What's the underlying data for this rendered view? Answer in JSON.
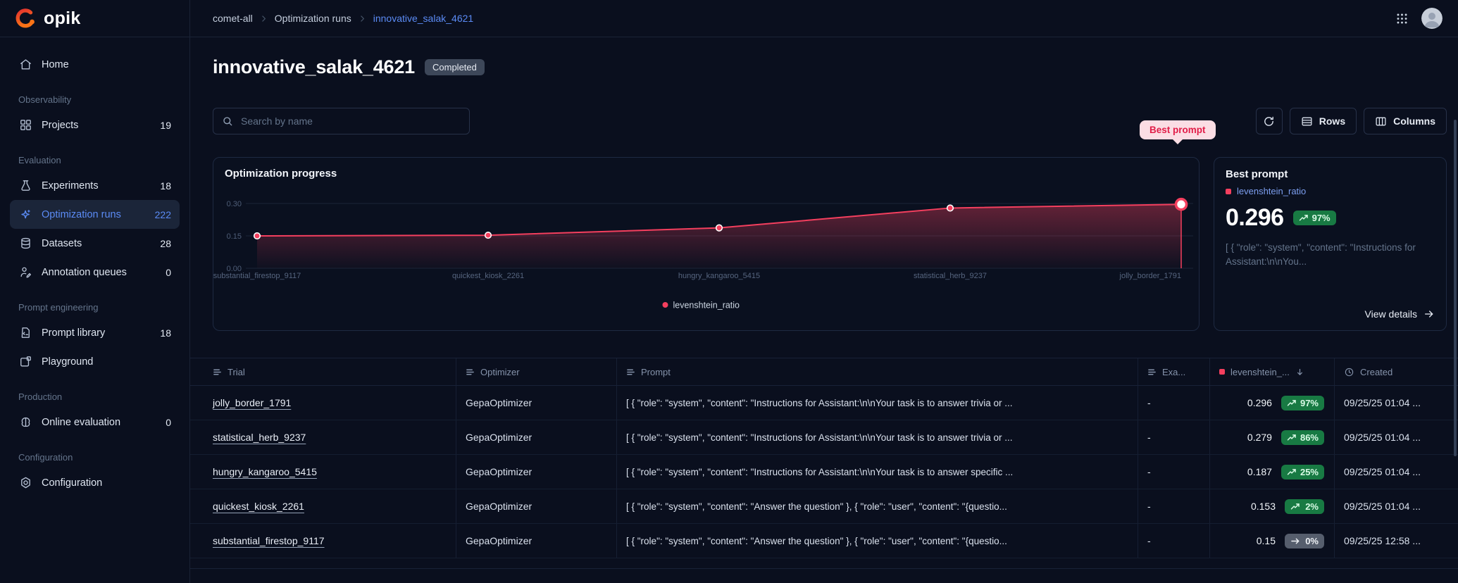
{
  "app": {
    "logo_text": "opik"
  },
  "topbar": {
    "breadcrumb": [
      "comet-all",
      "Optimization runs",
      "innovative_salak_4621"
    ]
  },
  "sidebar": {
    "sections": [
      {
        "label": "",
        "items": [
          {
            "icon": "home",
            "label": "Home",
            "count": null,
            "active": false
          }
        ]
      },
      {
        "label": "Observability",
        "items": [
          {
            "icon": "projects",
            "label": "Projects",
            "count": "19",
            "active": false
          }
        ]
      },
      {
        "label": "Evaluation",
        "items": [
          {
            "icon": "experiments",
            "label": "Experiments",
            "count": "18",
            "active": false
          },
          {
            "icon": "optimization",
            "label": "Optimization runs",
            "count": "222",
            "active": true
          },
          {
            "icon": "datasets",
            "label": "Datasets",
            "count": "28",
            "active": false
          },
          {
            "icon": "annotation",
            "label": "Annotation queues",
            "count": "0",
            "active": false
          }
        ]
      },
      {
        "label": "Prompt engineering",
        "items": [
          {
            "icon": "prompt-library",
            "label": "Prompt library",
            "count": "18",
            "active": false
          },
          {
            "icon": "playground",
            "label": "Playground",
            "count": null,
            "active": false
          }
        ]
      },
      {
        "label": "Production",
        "items": [
          {
            "icon": "online-eval",
            "label": "Online evaluation",
            "count": "0",
            "active": false
          }
        ]
      },
      {
        "label": "Configuration",
        "items": [
          {
            "icon": "configuration",
            "label": "Configuration",
            "count": null,
            "active": false
          }
        ]
      }
    ]
  },
  "main": {
    "title": "innovative_salak_4621",
    "status": "Completed",
    "toolbar": {
      "search_placeholder": "Search by name",
      "rows_label": "Rows",
      "columns_label": "Columns"
    }
  },
  "chart_data": {
    "type": "line",
    "title": "Optimization progress",
    "categories": [
      "substantial_firestop_9117",
      "quickest_kiosk_2261",
      "hungry_kangaroo_5415",
      "statistical_herb_9237",
      "jolly_border_1791"
    ],
    "series": [
      {
        "name": "levenshtein_ratio",
        "color": "#f43f5e",
        "values": [
          0.15,
          0.153,
          0.187,
          0.279,
          0.296
        ]
      }
    ],
    "y_ticks": [
      0.0,
      0.15,
      0.3
    ],
    "ylim": [
      0,
      0.3
    ],
    "legend": "levenshtein_ratio",
    "legend_position": "bottom-center",
    "grid": true,
    "annotation": {
      "label": "Best prompt",
      "point_index": 4
    }
  },
  "best_prompt": {
    "title": "Best prompt",
    "metric": "levenshtein_ratio",
    "value": "0.296",
    "trend": "97%",
    "preview": "[ { \"role\": \"system\", \"content\": \"Instructions for Assistant:\\n\\nYou...",
    "view_details": "View details"
  },
  "table": {
    "columns": [
      {
        "label": "Trial",
        "icon": "text"
      },
      {
        "label": "Optimizer",
        "icon": "text"
      },
      {
        "label": "Prompt",
        "icon": "text"
      },
      {
        "label": "Exa...",
        "icon": "text"
      },
      {
        "label": "levenshtein_...",
        "icon": "metric",
        "sort": "desc"
      },
      {
        "label": "Created",
        "icon": "clock"
      }
    ],
    "rows": [
      {
        "trial": "jolly_border_1791",
        "optimizer": "GepaOptimizer",
        "prompt": "[ { \"role\": \"system\", \"content\": \"Instructions for Assistant:\\n\\nYour task is to answer trivia or ...",
        "examples": "-",
        "value": "0.296",
        "trend": "97%",
        "trend_dir": "up",
        "created": "09/25/25 01:04 ..."
      },
      {
        "trial": "statistical_herb_9237",
        "optimizer": "GepaOptimizer",
        "prompt": "[ { \"role\": \"system\", \"content\": \"Instructions for Assistant:\\n\\nYour task is to answer trivia or ...",
        "examples": "-",
        "value": "0.279",
        "trend": "86%",
        "trend_dir": "up",
        "created": "09/25/25 01:04 ..."
      },
      {
        "trial": "hungry_kangaroo_5415",
        "optimizer": "GepaOptimizer",
        "prompt": "[ { \"role\": \"system\", \"content\": \"Instructions for Assistant:\\n\\nYour task is to answer specific ...",
        "examples": "-",
        "value": "0.187",
        "trend": "25%",
        "trend_dir": "up",
        "created": "09/25/25 01:04 ..."
      },
      {
        "trial": "quickest_kiosk_2261",
        "optimizer": "GepaOptimizer",
        "prompt": "[ { \"role\": \"system\", \"content\": \"Answer the question\" }, { \"role\": \"user\", \"content\": \"{questio...",
        "examples": "-",
        "value": "0.153",
        "trend": "2%",
        "trend_dir": "up",
        "created": "09/25/25 01:04 ..."
      },
      {
        "trial": "substantial_firestop_9117",
        "optimizer": "GepaOptimizer",
        "prompt": "[ { \"role\": \"system\", \"content\": \"Answer the question\" }, { \"role\": \"user\", \"content\": \"{questio...",
        "examples": "-",
        "value": "0.15",
        "trend": "0%",
        "trend_dir": "flat",
        "created": "09/25/25 12:58 ..."
      }
    ]
  }
}
